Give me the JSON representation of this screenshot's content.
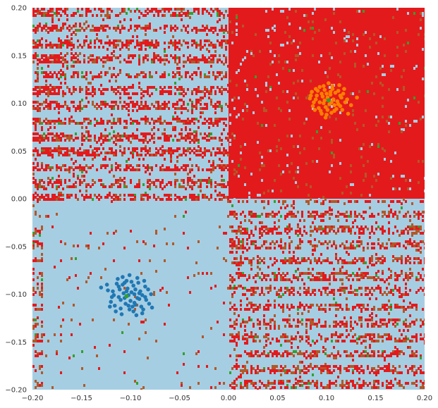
{
  "chart_data": {
    "type": "scatter",
    "title": "",
    "xlabel": "",
    "ylabel": "",
    "xlim": [
      -0.2,
      0.2
    ],
    "ylim": [
      -0.2,
      0.2
    ],
    "x_ticks": [
      -0.2,
      -0.15,
      -0.1,
      -0.05,
      0.0,
      0.05,
      0.1,
      0.15,
      0.2
    ],
    "y_ticks": [
      -0.2,
      -0.15,
      -0.1,
      -0.05,
      0.0,
      0.05,
      0.1,
      0.15,
      0.2
    ],
    "x_tick_labels": [
      "−0.20",
      "−0.15",
      "−0.10",
      "−0.05",
      "0.00",
      "0.05",
      "0.10",
      "0.15",
      "0.20"
    ],
    "y_tick_labels": [
      "−0.20",
      "−0.15",
      "−0.10",
      "−0.05",
      "0.00",
      "0.05",
      "0.10",
      "0.15",
      "0.20"
    ],
    "grid": false,
    "legend": "none",
    "decision_regions": {
      "background_color": "#a6cee3",
      "class_colors": [
        "#a6cee3",
        "#e31a1c",
        "#b15928",
        "#33a02c"
      ],
      "dominant_region": {
        "x": [
          0.0,
          0.2
        ],
        "y": [
          0.0,
          0.2
        ],
        "color": "#e31a1c"
      },
      "noisy_stripe_color_primary": "#e31a1c",
      "noisy_stripe_color_secondary": "#b15928"
    },
    "series": [
      {
        "color": "#1f78b4",
        "center": [
          -0.1,
          -0.102
        ],
        "points": [
          [
            -0.108,
            -0.09
          ],
          [
            -0.095,
            -0.095
          ],
          [
            -0.112,
            -0.103
          ],
          [
            -0.088,
            -0.101
          ],
          [
            -0.102,
            -0.112
          ],
          [
            -0.093,
            -0.083
          ],
          [
            -0.118,
            -0.097
          ],
          [
            -0.081,
            -0.11
          ],
          [
            -0.104,
            -0.086
          ],
          [
            -0.097,
            -0.118
          ],
          [
            -0.12,
            -0.108
          ],
          [
            -0.085,
            -0.092
          ],
          [
            -0.11,
            -0.115
          ],
          [
            -0.091,
            -0.105
          ],
          [
            -0.099,
            -0.098
          ],
          [
            -0.106,
            -0.104
          ],
          [
            -0.114,
            -0.089
          ],
          [
            -0.087,
            -0.116
          ],
          [
            -0.101,
            -0.08
          ],
          [
            -0.096,
            -0.109
          ],
          [
            -0.123,
            -0.096
          ],
          [
            -0.079,
            -0.1
          ],
          [
            -0.109,
            -0.121
          ],
          [
            -0.092,
            -0.088
          ],
          [
            -0.103,
            -0.094
          ],
          [
            -0.116,
            -0.112
          ],
          [
            -0.084,
            -0.106
          ],
          [
            -0.098,
            -0.113
          ],
          [
            -0.107,
            -0.099
          ],
          [
            -0.09,
            -0.097
          ],
          [
            -0.113,
            -0.084
          ],
          [
            -0.094,
            -0.122
          ],
          [
            -0.1,
            -0.107
          ],
          [
            -0.119,
            -0.103
          ],
          [
            -0.086,
            -0.086
          ],
          [
            -0.105,
            -0.11
          ],
          [
            -0.097,
            -0.091
          ],
          [
            -0.111,
            -0.095
          ],
          [
            -0.089,
            -0.113
          ],
          [
            -0.102,
            -0.101
          ],
          [
            -0.115,
            -0.118
          ],
          [
            -0.082,
            -0.095
          ],
          [
            -0.108,
            -0.082
          ],
          [
            -0.093,
            -0.104
          ],
          [
            -0.099,
            -0.087
          ],
          [
            -0.121,
            -0.113
          ],
          [
            -0.088,
            -0.12
          ],
          [
            -0.104,
            -0.097
          ],
          [
            -0.095,
            -0.111
          ],
          [
            -0.11,
            -0.106
          ],
          [
            -0.124,
            -0.09
          ],
          [
            -0.078,
            -0.114
          ],
          [
            -0.112,
            -0.092
          ],
          [
            -0.091,
            -0.099
          ],
          [
            -0.101,
            -0.116
          ],
          [
            -0.096,
            -0.1
          ],
          [
            -0.106,
            -0.088
          ],
          [
            -0.117,
            -0.101
          ],
          [
            -0.085,
            -0.103
          ],
          [
            -0.13,
            -0.093
          ]
        ]
      },
      {
        "color": "#ff7f00",
        "center": [
          0.102,
          0.103
        ],
        "points": [
          [
            0.095,
            0.11
          ],
          [
            0.108,
            0.098
          ],
          [
            0.089,
            0.104
          ],
          [
            0.115,
            0.106
          ],
          [
            0.101,
            0.093
          ],
          [
            0.097,
            0.118
          ],
          [
            0.112,
            0.113
          ],
          [
            0.086,
            0.097
          ],
          [
            0.104,
            0.109
          ],
          [
            0.093,
            0.101
          ],
          [
            0.119,
            0.101
          ],
          [
            0.1,
            0.088
          ],
          [
            0.106,
            0.115
          ],
          [
            0.091,
            0.113
          ],
          [
            0.11,
            0.094
          ],
          [
            0.098,
            0.103
          ],
          [
            0.084,
            0.108
          ],
          [
            0.114,
            0.097
          ],
          [
            0.102,
            0.121
          ],
          [
            0.094,
            0.092
          ],
          [
            0.117,
            0.11
          ],
          [
            0.089,
            0.115
          ],
          [
            0.107,
            0.104
          ],
          [
            0.099,
            0.096
          ],
          [
            0.113,
            0.119
          ],
          [
            0.087,
            0.101
          ],
          [
            0.105,
            0.09
          ],
          [
            0.096,
            0.107
          ],
          [
            0.121,
            0.104
          ],
          [
            0.092,
            0.095
          ],
          [
            0.109,
            0.111
          ],
          [
            0.083,
            0.105
          ],
          [
            0.103,
            0.099
          ],
          [
            0.116,
            0.093
          ],
          [
            0.098,
            0.114
          ],
          [
            0.09,
            0.108
          ],
          [
            0.111,
            0.102
          ],
          [
            0.095,
            0.089
          ],
          [
            0.106,
            0.118
          ],
          [
            0.101,
            0.106
          ],
          [
            0.118,
            0.115
          ],
          [
            0.088,
            0.093
          ],
          [
            0.104,
            0.112
          ],
          [
            0.097,
            0.1
          ],
          [
            0.114,
            0.108
          ],
          [
            0.093,
            0.117
          ],
          [
            0.108,
            0.092
          ],
          [
            0.1,
            0.11
          ],
          [
            0.085,
            0.112
          ],
          [
            0.112,
            0.099
          ],
          [
            0.125,
            0.098
          ],
          [
            0.131,
            0.106
          ],
          [
            0.122,
            0.089
          ],
          [
            0.099,
            0.085
          ],
          [
            0.105,
            0.101
          ]
        ]
      }
    ],
    "centroids": {
      "color": "#33a02c",
      "points": [
        [
          -0.104,
          -0.102
        ],
        [
          0.102,
          0.103
        ]
      ]
    }
  }
}
